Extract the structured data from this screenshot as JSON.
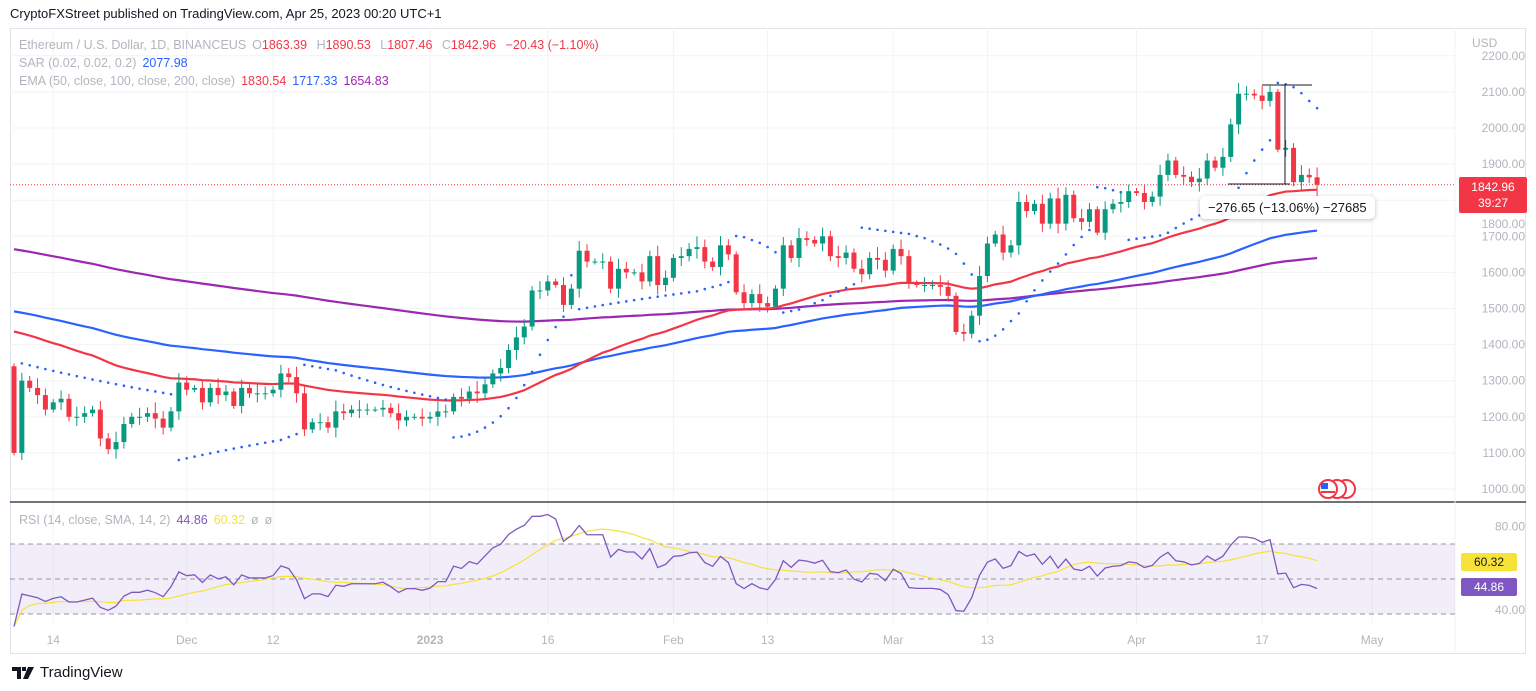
{
  "header": {
    "published": "CryptoFXStreet published on TradingView.com, Apr 25, 2023 00:20 UTC+1"
  },
  "legend": {
    "symbol": "Ethereum / U.S. Dollar, 1D, BINANCEUS",
    "o_label": "O",
    "o": "1863.39",
    "h_label": "H",
    "h": "1890.53",
    "l_label": "L",
    "l": "1807.46",
    "c_label": "C",
    "c": "1842.96",
    "change": "−20.43 (−1.10%)",
    "sar_title": "SAR (0.02, 0.02, 0.2)",
    "sar_value": "2077.98",
    "ema_title": "EMA (50, close, 100, close, 200, close)",
    "ema50": "1830.54",
    "ema100": "1717.33",
    "ema200": "1654.83",
    "rsi_title": "RSI (14, close, SMA, 14, 2)",
    "rsi_value": "44.86",
    "rsi_sma": "60.32",
    "rsi_na1": "ø",
    "rsi_na2": "ø"
  },
  "price_label": {
    "price": "1842.96",
    "countdown": "39:27"
  },
  "rsi_labels": {
    "sma": "60.32",
    "rsi": "44.86"
  },
  "measure": {
    "text": "−276.65 (−13.06%) −27685"
  },
  "currency": "USD",
  "footer": {
    "brand": "TradingView"
  },
  "colors": {
    "up": "#089981",
    "down": "#f23645",
    "ema50": "#f23645",
    "ema100": "#2962ff",
    "ema200": "#9c27b0",
    "sar": "#2962ff",
    "rsi": "#7e57c2",
    "rsi_sma": "#f7e23a"
  },
  "chart_data": {
    "type": "candlestick",
    "title": "Ethereum / U.S. Dollar, 1D, BINANCEUS",
    "start_date": "2022-11-09",
    "first_open": 1340,
    "closes": [
      1100,
      1300,
      1280,
      1260,
      1220,
      1240,
      1250,
      1200,
      1200,
      1210,
      1220,
      1140,
      1110,
      1130,
      1180,
      1200,
      1200,
      1210,
      1195,
      1170,
      1215,
      1295,
      1275,
      1280,
      1240,
      1280,
      1260,
      1270,
      1230,
      1280,
      1265,
      1265,
      1265,
      1275,
      1320,
      1310,
      1265,
      1165,
      1185,
      1185,
      1170,
      1215,
      1210,
      1220,
      1220,
      1220,
      1220,
      1225,
      1210,
      1190,
      1200,
      1200,
      1195,
      1200,
      1215,
      1215,
      1255,
      1250,
      1270,
      1265,
      1290,
      1320,
      1335,
      1385,
      1420,
      1450,
      1550,
      1550,
      1575,
      1565,
      1510,
      1555,
      1660,
      1630,
      1630,
      1630,
      1555,
      1610,
      1600,
      1600,
      1575,
      1645,
      1565,
      1585,
      1640,
      1645,
      1665,
      1670,
      1630,
      1615,
      1675,
      1650,
      1545,
      1515,
      1540,
      1515,
      1505,
      1555,
      1675,
      1640,
      1695,
      1690,
      1680,
      1700,
      1645,
      1640,
      1655,
      1610,
      1595,
      1640,
      1635,
      1605,
      1665,
      1645,
      1570,
      1565,
      1565,
      1565,
      1560,
      1535,
      1435,
      1430,
      1480,
      1590,
      1680,
      1705,
      1655,
      1675,
      1795,
      1770,
      1790,
      1735,
      1805,
      1735,
      1815,
      1750,
      1740,
      1775,
      1710,
      1775,
      1790,
      1795,
      1825,
      1820,
      1795,
      1810,
      1870,
      1910,
      1870,
      1865,
      1850,
      1860,
      1910,
      1890,
      1920,
      2010,
      2095,
      2095,
      2090,
      2075,
      2100,
      1940,
      1945,
      1850,
      1870,
      1863.39,
      1842.96
    ],
    "ema_seed": {
      "ema50": 1450,
      "ema100": 1500,
      "ema200": 1670
    },
    "y_ticks": [
      1000,
      1100,
      1200,
      1300,
      1400,
      1500,
      1600,
      1700,
      1800,
      1900,
      2000,
      2100,
      2200
    ],
    "ylim": [
      1000,
      2200
    ],
    "x_ticks": [
      {
        "label": "14",
        "day": 5
      },
      {
        "label": "Dec",
        "day": 22
      },
      {
        "label": "12",
        "day": 33
      },
      {
        "label": "2023",
        "day": 53
      },
      {
        "label": "16",
        "day": 68
      },
      {
        "label": "Feb",
        "day": 84
      },
      {
        "label": "13",
        "day": 96
      },
      {
        "label": "Mar",
        "day": 112
      },
      {
        "label": "13",
        "day": 124
      },
      {
        "label": "Apr",
        "day": 143
      },
      {
        "label": "17",
        "day": 159
      },
      {
        "label": "May",
        "day": 173
      }
    ],
    "rsi_ticks": [
      {
        "label": "80.00",
        "v": 80
      },
      {
        "label": "40.00",
        "v": 40
      }
    ],
    "rsi_bands": [
      30,
      50,
      70
    ],
    "last_price": 1842.96
  }
}
